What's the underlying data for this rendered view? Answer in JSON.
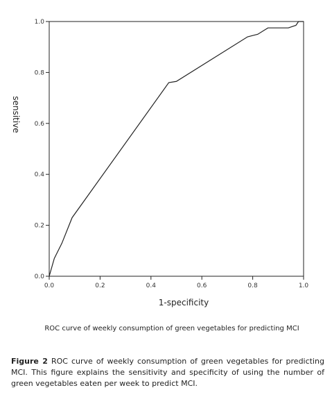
{
  "chart_data": {
    "type": "line",
    "xlabel": "1-specificity",
    "ylabel": "sensitive",
    "xlim": [
      0.0,
      1.0
    ],
    "ylim": [
      0.0,
      1.0
    ],
    "xticks": [
      "0.0",
      "0.2",
      "0.4",
      "0.6",
      "0.8",
      "1.0"
    ],
    "yticks": [
      "0.0",
      "0.2",
      "0.4",
      "0.6",
      "0.8",
      "1.0"
    ],
    "grid": false,
    "series": [
      {
        "x": [
          0.0,
          0.02,
          0.04,
          0.045,
          0.05,
          0.09,
          0.47,
          0.5,
          0.78,
          0.8,
          0.82,
          0.86,
          0.94,
          0.97,
          0.98,
          1.0
        ],
        "y": [
          0.0,
          0.07,
          0.11,
          0.12,
          0.13,
          0.23,
          0.76,
          0.765,
          0.94,
          0.945,
          0.95,
          0.975,
          0.975,
          0.985,
          1.0,
          1.0
        ]
      }
    ]
  },
  "inner_caption": "ROC curve of weekly consumption of green vegetables for predicting MCI",
  "figure_caption": {
    "label": "Figure 2",
    "text": " ROC curve of weekly consumption of green vegetables for predicting MCI. This figure explains the sensitivity and specificity of using the number of green vegetables eaten per week to predict MCI."
  }
}
